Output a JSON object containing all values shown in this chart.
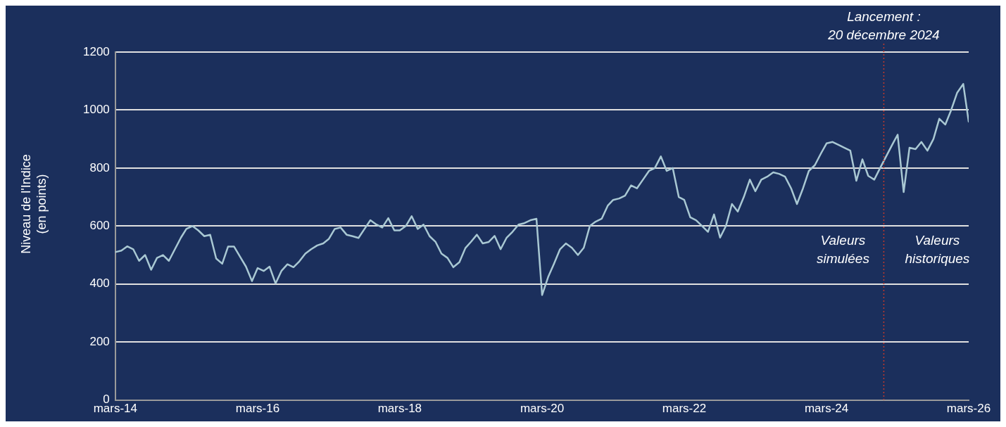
{
  "chart_data": {
    "type": "line",
    "ylabel": "Niveau de l'Indice (en points)",
    "x": [
      "2014-03",
      "2014-04",
      "2014-05",
      "2014-06",
      "2014-07",
      "2014-08",
      "2014-09",
      "2014-10",
      "2014-11",
      "2014-12",
      "2015-01",
      "2015-02",
      "2015-03",
      "2015-04",
      "2015-05",
      "2015-06",
      "2015-07",
      "2015-08",
      "2015-09",
      "2015-10",
      "2015-11",
      "2015-12",
      "2016-01",
      "2016-02",
      "2016-03",
      "2016-04",
      "2016-05",
      "2016-06",
      "2016-07",
      "2016-08",
      "2016-09",
      "2016-10",
      "2016-11",
      "2016-12",
      "2017-01",
      "2017-02",
      "2017-03",
      "2017-04",
      "2017-05",
      "2017-06",
      "2017-07",
      "2017-08",
      "2017-09",
      "2017-10",
      "2017-11",
      "2017-12",
      "2018-01",
      "2018-02",
      "2018-03",
      "2018-04",
      "2018-05",
      "2018-06",
      "2018-07",
      "2018-08",
      "2018-09",
      "2018-10",
      "2018-11",
      "2018-12",
      "2019-01",
      "2019-02",
      "2019-03",
      "2019-04",
      "2019-05",
      "2019-06",
      "2019-07",
      "2019-08",
      "2019-09",
      "2019-10",
      "2019-11",
      "2019-12",
      "2020-01",
      "2020-02",
      "2020-03",
      "2020-04",
      "2020-05",
      "2020-06",
      "2020-07",
      "2020-08",
      "2020-09",
      "2020-10",
      "2020-11",
      "2020-12",
      "2021-01",
      "2021-02",
      "2021-03",
      "2021-04",
      "2021-05",
      "2021-06",
      "2021-07",
      "2021-08",
      "2021-09",
      "2021-10",
      "2021-11",
      "2021-12",
      "2022-01",
      "2022-02",
      "2022-03",
      "2022-04",
      "2022-05",
      "2022-06",
      "2022-07",
      "2022-08",
      "2022-09",
      "2022-10",
      "2022-11",
      "2022-12",
      "2023-01",
      "2023-02",
      "2023-03",
      "2023-04",
      "2023-05",
      "2023-06",
      "2023-07",
      "2023-08",
      "2023-09",
      "2023-10",
      "2023-11",
      "2023-12",
      "2024-01",
      "2024-02",
      "2024-03",
      "2024-04",
      "2024-05",
      "2024-06",
      "2024-07",
      "2024-08",
      "2024-09",
      "2024-10",
      "2024-11",
      "2024-12",
      "2025-01",
      "2025-02",
      "2025-03",
      "2025-04",
      "2025-05",
      "2025-06",
      "2025-07",
      "2025-08",
      "2025-09",
      "2025-10",
      "2025-11",
      "2025-12",
      "2026-01",
      "2026-02",
      "2026-03"
    ],
    "series": [
      {
        "color": "#a9c8d3",
        "values": [
          510,
          515,
          530,
          520,
          480,
          500,
          449,
          490,
          500,
          480,
          520,
          560,
          590,
          600,
          585,
          565,
          570,
          488,
          470,
          529,
          529,
          495,
          460,
          410,
          455,
          445,
          460,
          402,
          445,
          468,
          458,
          478,
          505,
          520,
          533,
          540,
          555,
          590,
          595,
          570,
          565,
          559,
          590,
          620,
          605,
          595,
          627,
          585,
          585,
          600,
          634,
          590,
          605,
          565,
          545,
          505,
          490,
          458,
          475,
          524,
          545,
          570,
          540,
          545,
          566,
          520,
          560,
          580,
          605,
          610,
          620,
          625,
          362,
          424,
          470,
          520,
          540,
          525,
          500,
          525,
          600,
          615,
          625,
          670,
          690,
          695,
          705,
          740,
          730,
          760,
          790,
          800,
          840,
          790,
          800,
          700,
          690,
          630,
          620,
          600,
          580,
          640,
          560,
          600,
          676,
          650,
          700,
          760,
          720,
          760,
          770,
          785,
          780,
          770,
          730,
          676,
          730,
          790,
          810,
          850,
          885,
          890,
          880,
          870,
          860,
          756,
          830,
          773,
          760,
          800,
          840,
          880,
          915,
          717,
          870,
          865,
          890,
          860,
          900,
          970,
          950,
          1000,
          1060,
          1090,
          960
        ]
      }
    ],
    "xlim": [
      "2014-03",
      "2026-03"
    ],
    "xticks": [
      {
        "value": "2014-03",
        "label": "mars-14"
      },
      {
        "value": "2016-03",
        "label": "mars-16"
      },
      {
        "value": "2018-03",
        "label": "mars-18"
      },
      {
        "value": "2020-03",
        "label": "mars-20"
      },
      {
        "value": "2022-03",
        "label": "mars-22"
      },
      {
        "value": "2024-03",
        "label": "mars-24"
      },
      {
        "value": "2026-03",
        "label": "mars-26"
      }
    ],
    "ylim": [
      0,
      1200
    ],
    "yticks": [
      0,
      200,
      400,
      600,
      800,
      1000,
      1200
    ],
    "grid": "y",
    "ref_lines": [
      {
        "axis": "x",
        "value": "2024-12-20",
        "label": "Lancement : 20 décembre 2024",
        "color": "#c0392b",
        "line_style": "dotted"
      }
    ],
    "annotations": [
      "Valeurs simulées",
      "Valeurs historiques"
    ]
  }
}
